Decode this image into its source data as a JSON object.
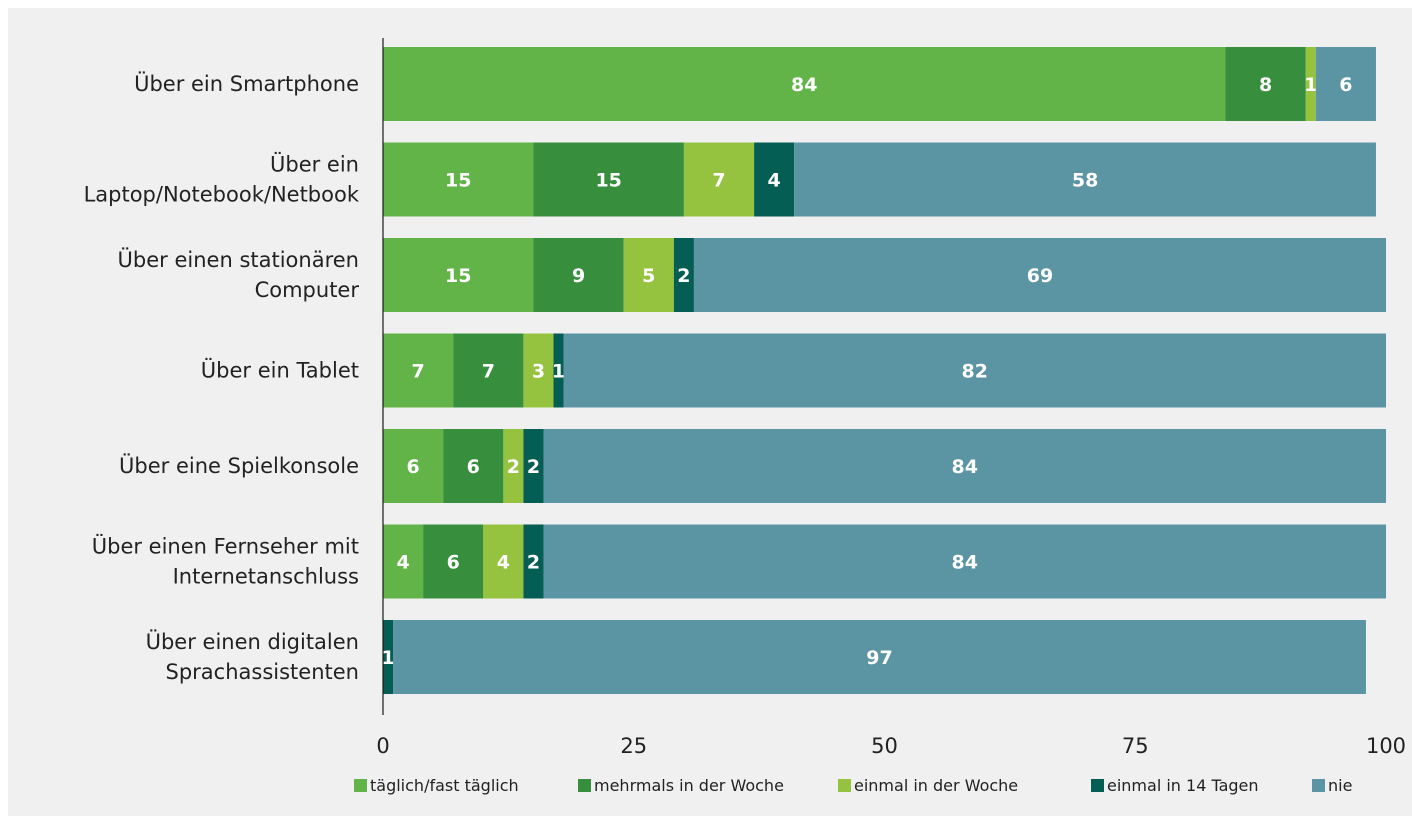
{
  "chart_data": {
    "type": "bar",
    "orientation": "horizontal",
    "stacked": true,
    "title": "",
    "xlabel": "",
    "ylabel": "",
    "xlim": [
      0,
      100
    ],
    "x_ticks": [
      "0",
      "25",
      "50",
      "75",
      "100"
    ],
    "grid": false,
    "legend_position": "bottom",
    "categories": [
      [
        "Über ein Smartphone"
      ],
      [
        "Über ein",
        "Laptop/Notebook/Netbook"
      ],
      [
        "Über einen stationären",
        "Computer"
      ],
      [
        "Über ein Tablet"
      ],
      [
        "Über eine Spielkonsole"
      ],
      [
        "Über einen Fernseher mit",
        "Internetanschluss"
      ],
      [
        "Über einen digitalen",
        "Sprachassistenten"
      ]
    ],
    "series": [
      {
        "name": "täglich/fast täglich",
        "color": "#62b348",
        "values": [
          84,
          15,
          15,
          7,
          6,
          4,
          0
        ]
      },
      {
        "name": "mehrmals in der Woche",
        "color": "#378f3d",
        "values": [
          8,
          15,
          9,
          7,
          6,
          6,
          0
        ]
      },
      {
        "name": "einmal in der Woche",
        "color": "#96c33f",
        "values": [
          1,
          7,
          5,
          3,
          2,
          4,
          0
        ]
      },
      {
        "name": "einmal in 14 Tagen",
        "color": "#055e53",
        "values": [
          0,
          4,
          2,
          1,
          2,
          2,
          1
        ]
      },
      {
        "name": "nie",
        "color": "#5b95a3",
        "values": [
          6,
          58,
          69,
          82,
          84,
          84,
          97
        ]
      }
    ]
  }
}
